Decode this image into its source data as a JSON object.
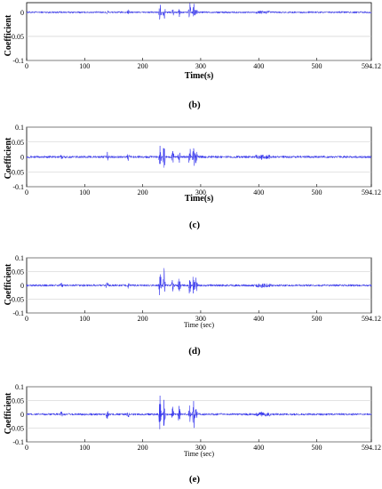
{
  "figure": {
    "plot_line_color": "#3333ee",
    "panels": [
      {
        "caption": "",
        "xlabel": "Time(s)",
        "ylabel": "Coefficient"
      },
      {
        "caption": "(b)",
        "xlabel": "Time(s)",
        "ylabel": "Coefficient"
      },
      {
        "caption": "(c)",
        "xlabel": "Time (sec)",
        "ylabel": "Coefficient"
      },
      {
        "caption": "(d)",
        "xlabel": "Time (sec)",
        "ylabel": "Coefficient"
      },
      {
        "caption": "(e)",
        "xlabel": "",
        "ylabel": ""
      }
    ]
  },
  "chart_data": [
    {
      "type": "line",
      "title": "",
      "xlabel": "Time(s)",
      "ylabel": "Coefficient",
      "xlim": [
        0,
        594.12
      ],
      "ylim": [
        -0.1,
        0.1
      ],
      "x_ticks": [
        "0",
        "100",
        "200",
        "300",
        "400",
        "500",
        "594.12"
      ],
      "y_ticks": [
        "0",
        "-0.05",
        "-0.1"
      ],
      "grid": "horizontal",
      "series": [
        {
          "bursts": [
            {
              "t": 139,
              "amp": 0.006
            },
            {
              "t": 175,
              "amp": 0.004
            },
            {
              "t": 230,
              "amp": 0.022
            },
            {
              "t": 237,
              "amp": 0.016
            },
            {
              "t": 252,
              "amp": 0.008
            },
            {
              "t": 263,
              "amp": 0.01
            },
            {
              "t": 281,
              "amp": 0.025
            },
            {
              "t": 288,
              "amp": 0.02
            },
            {
              "t": 292,
              "amp": 0.012
            }
          ],
          "baseline_amp": 0.002
        }
      ]
    },
    {
      "type": "line",
      "title": "",
      "xlabel": "Time(s)",
      "ylabel": "Coefficient",
      "xlim": [
        0,
        594.12
      ],
      "ylim": [
        -0.1,
        0.1
      ],
      "x_ticks": [
        "0",
        "100",
        "200",
        "300",
        "400",
        "500",
        "594.12"
      ],
      "y_ticks": [
        "0.1",
        "0.05",
        "0",
        "-0.05",
        "-0.1"
      ],
      "grid": "horizontal",
      "series": [
        {
          "bursts": [
            {
              "t": 60,
              "amp": 0.006
            },
            {
              "t": 139,
              "amp": 0.015
            },
            {
              "t": 175,
              "amp": 0.01
            },
            {
              "t": 230,
              "amp": 0.045
            },
            {
              "t": 237,
              "amp": 0.055
            },
            {
              "t": 252,
              "amp": 0.02
            },
            {
              "t": 263,
              "amp": 0.025
            },
            {
              "t": 281,
              "amp": 0.035
            },
            {
              "t": 288,
              "amp": 0.04
            },
            {
              "t": 292,
              "amp": 0.03
            },
            {
              "t": 405,
              "amp": 0.008
            }
          ],
          "baseline_amp": 0.004
        }
      ]
    },
    {
      "type": "line",
      "title": "",
      "xlabel": "Time (sec)",
      "ylabel": "Coefficient",
      "xlim": [
        0,
        594.12
      ],
      "ylim": [
        -0.1,
        0.1
      ],
      "x_ticks": [
        "0",
        "100",
        "200",
        "300",
        "400",
        "500",
        "594.12"
      ],
      "y_ticks": [
        "0.1",
        "0.05",
        "0",
        "-0.05",
        "-0.1"
      ],
      "grid": "horizontal",
      "series": [
        {
          "bursts": [
            {
              "t": 60,
              "amp": 0.007
            },
            {
              "t": 139,
              "amp": 0.018
            },
            {
              "t": 175,
              "amp": 0.01
            },
            {
              "t": 230,
              "amp": 0.075
            },
            {
              "t": 237,
              "amp": 0.065
            },
            {
              "t": 252,
              "amp": 0.03
            },
            {
              "t": 263,
              "amp": 0.035
            },
            {
              "t": 281,
              "amp": 0.04
            },
            {
              "t": 288,
              "amp": 0.06
            },
            {
              "t": 292,
              "amp": 0.03
            },
            {
              "t": 405,
              "amp": 0.008
            }
          ],
          "baseline_amp": 0.004
        }
      ]
    },
    {
      "type": "line",
      "title": "",
      "xlabel": "Time (sec)",
      "ylabel": "Coefficient",
      "xlim": [
        0,
        594.12
      ],
      "ylim": [
        -0.1,
        0.1
      ],
      "x_ticks": [
        "0",
        "100",
        "200",
        "300",
        "400",
        "500",
        "594.12"
      ],
      "y_ticks": [
        "0.1",
        "0.05",
        "0",
        "-0.05",
        "-0.1"
      ],
      "grid": "horizontal",
      "series": [
        {
          "bursts": [
            {
              "t": 60,
              "amp": 0.008
            },
            {
              "t": 139,
              "amp": 0.018
            },
            {
              "t": 175,
              "amp": 0.01
            },
            {
              "t": 230,
              "amp": 0.07
            },
            {
              "t": 237,
              "amp": 0.065
            },
            {
              "t": 252,
              "amp": 0.03
            },
            {
              "t": 263,
              "amp": 0.035
            },
            {
              "t": 281,
              "amp": 0.04
            },
            {
              "t": 288,
              "amp": 0.065
            },
            {
              "t": 292,
              "amp": 0.03
            },
            {
              "t": 405,
              "amp": 0.008
            }
          ],
          "baseline_amp": 0.004
        }
      ]
    }
  ]
}
